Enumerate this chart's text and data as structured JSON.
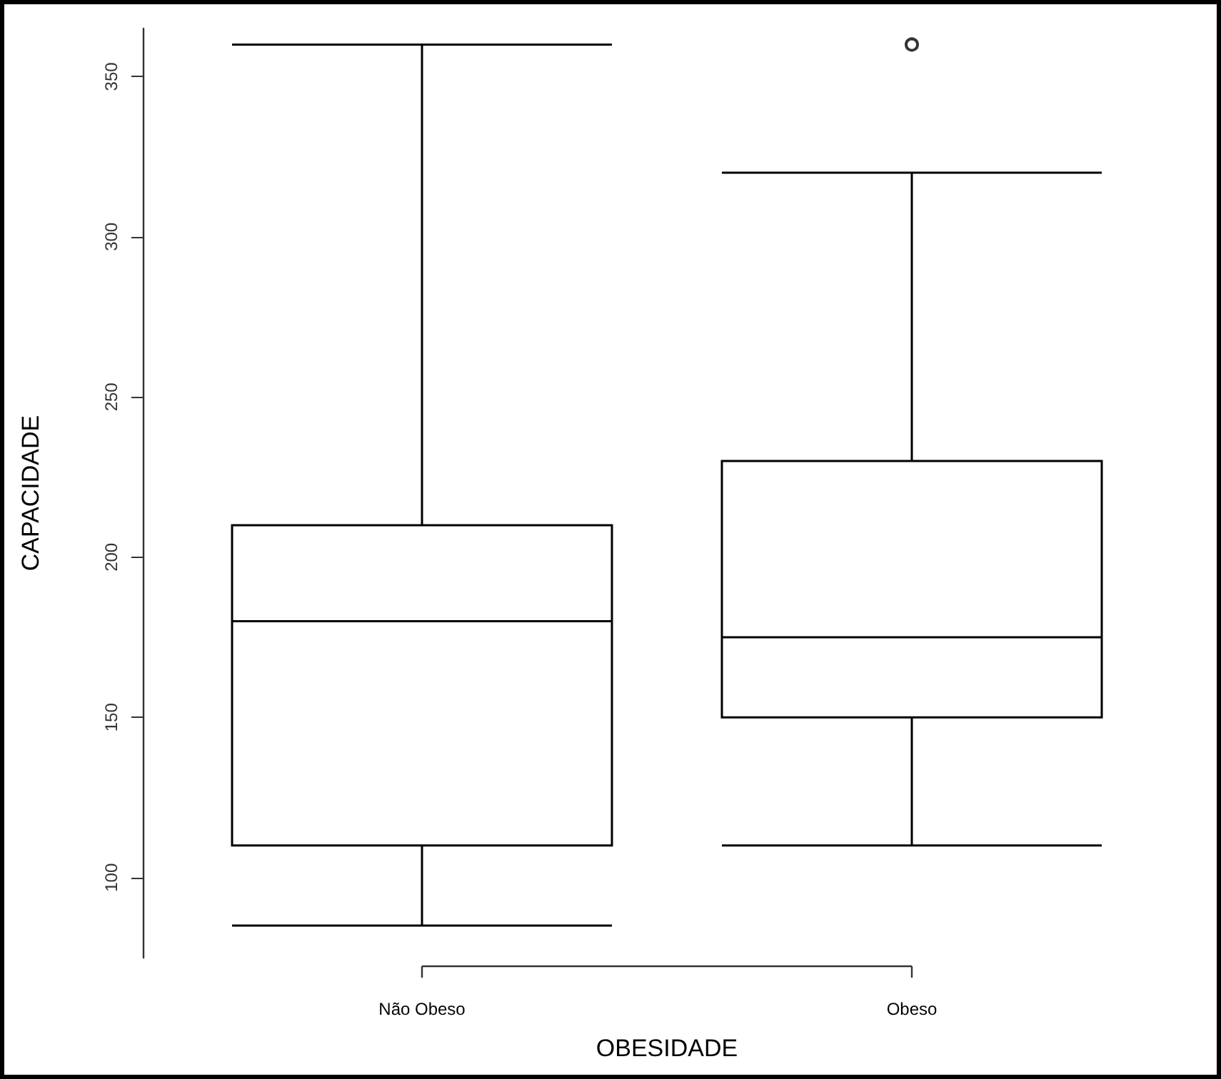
{
  "chart_data": {
    "type": "box",
    "xlabel": "OBESIDADE",
    "ylabel": "CAPACIDADE",
    "categories": [
      "Não Obeso",
      "Obeso"
    ],
    "boxes": [
      {
        "low": 85,
        "q1": 110,
        "median": 180,
        "q3": 210,
        "high": 360
      },
      {
        "low": 110,
        "q1": 150,
        "median": 175,
        "q3": 230,
        "high": 320,
        "outliers": [
          360
        ]
      }
    ],
    "color": "#000000",
    "ylim": [
      75,
      365
    ],
    "yticks": [
      100,
      150,
      200,
      250,
      300,
      350
    ],
    "grid": false
  }
}
